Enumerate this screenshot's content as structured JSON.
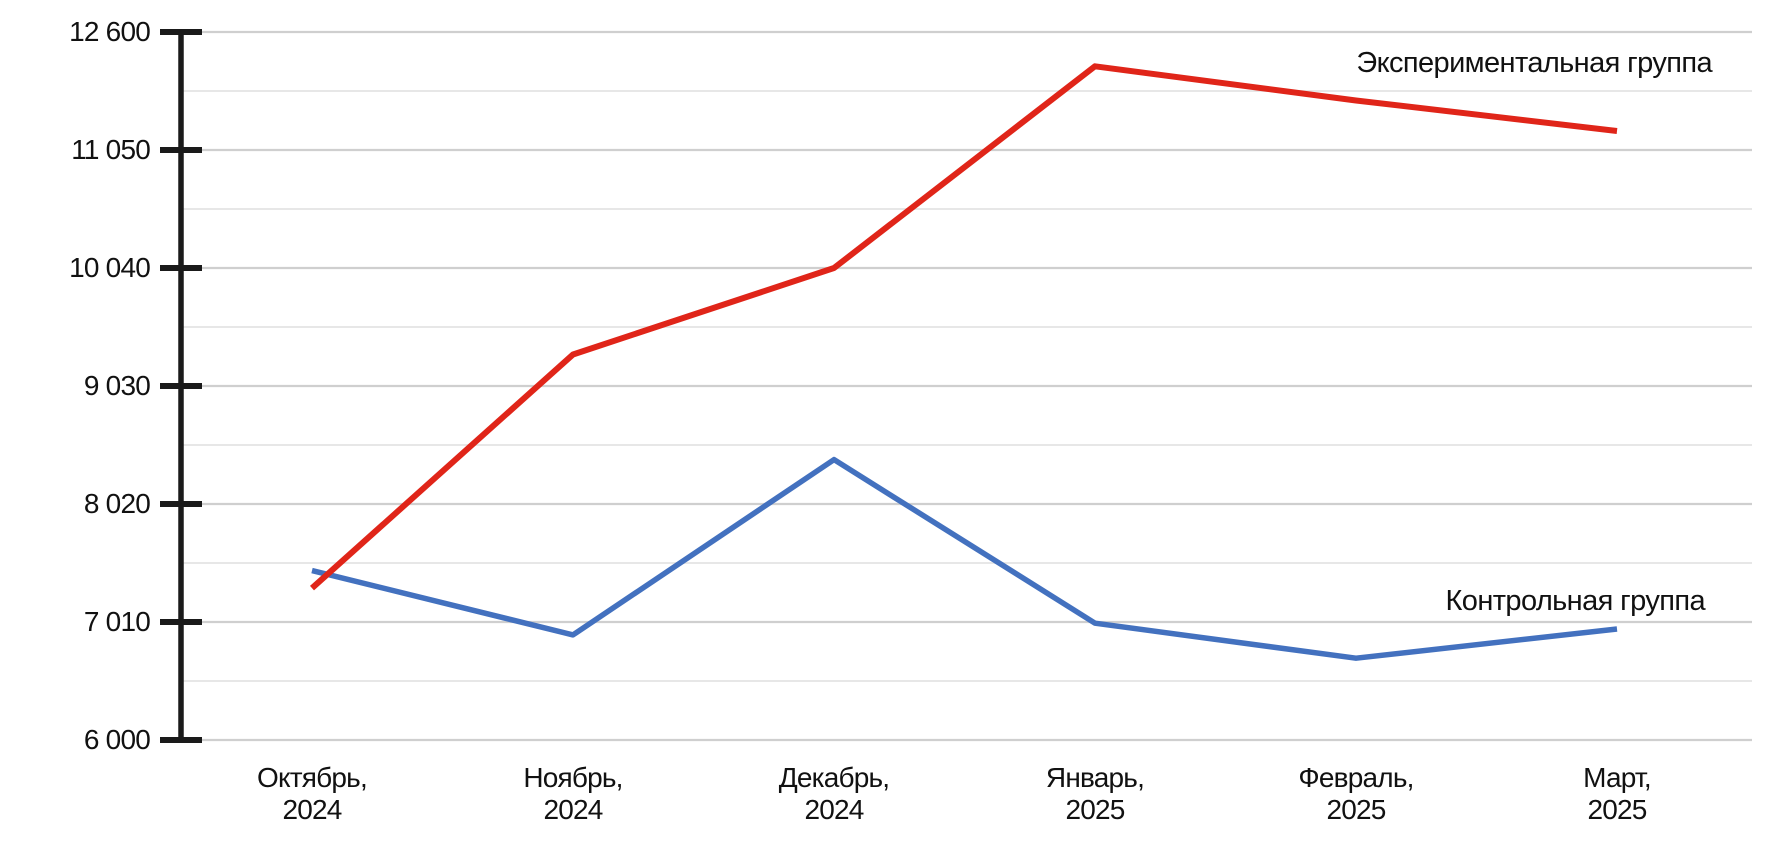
{
  "chart_data": {
    "type": "line",
    "title": "",
    "xlabel": "",
    "ylabel": "",
    "categories": [
      [
        "Октябрь,",
        "2024"
      ],
      [
        "Ноябрь,",
        "2024"
      ],
      [
        "Декабрь,",
        "2024"
      ],
      [
        "Январь,",
        "2025"
      ],
      [
        "Февраль,",
        "2025"
      ],
      [
        "Март,",
        "2025"
      ]
    ],
    "series": [
      {
        "name": "Экспериментальная группа",
        "color": "#e02519",
        "stroke_width": 6,
        "values": [
          7300,
          9300,
          10040,
          12150,
          11700,
          11300
        ]
      },
      {
        "name": "Контрольная группа",
        "color": "#4371bf",
        "stroke_width": 5.5,
        "values": [
          7450,
          6900,
          8400,
          7000,
          6700,
          6950
        ]
      }
    ],
    "y_axis": {
      "tick_values": [
        6000,
        7010,
        8020,
        9030,
        10040,
        11050,
        12600
      ],
      "tick_labels": [
        "6 000",
        "7 010",
        "8 020",
        "9 030",
        "10 040",
        "11 050",
        "12 600"
      ]
    },
    "ylim": [
      6000,
      12600
    ],
    "grid": "horizontal, major and minor lines",
    "legend_position": "labels at line ends (right side)"
  },
  "colors": {
    "background": "#ffffff",
    "axis": "#1a1a1a",
    "grid_major": "#cfcfcf",
    "grid_minor": "#e7e7e7",
    "text": "#111111"
  }
}
